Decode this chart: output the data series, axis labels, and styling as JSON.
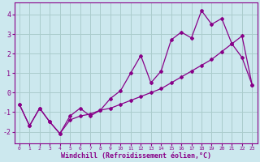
{
  "xlabel": "Windchill (Refroidissement éolien,°C)",
  "background_color": "#cce8ee",
  "grid_color": "#aacccc",
  "line_color": "#880088",
  "xlim": [
    -0.5,
    23.5
  ],
  "ylim": [
    -2.6,
    4.6
  ],
  "yticks": [
    -2,
    -1,
    0,
    1,
    2,
    3,
    4
  ],
  "xticks": [
    0,
    1,
    2,
    3,
    4,
    5,
    6,
    7,
    8,
    9,
    10,
    11,
    12,
    13,
    14,
    15,
    16,
    17,
    18,
    19,
    20,
    21,
    22,
    23
  ],
  "series1_x": [
    0,
    1,
    2,
    3,
    4,
    5,
    6,
    7,
    8,
    9,
    10,
    11,
    12,
    13,
    14,
    15,
    16,
    17,
    18,
    19,
    20,
    21,
    22,
    23
  ],
  "series1_y": [
    -0.6,
    -1.7,
    -0.8,
    -1.5,
    -2.1,
    -1.2,
    -0.8,
    -1.2,
    -0.9,
    -0.3,
    0.1,
    1.0,
    1.9,
    0.5,
    1.1,
    2.7,
    3.1,
    2.8,
    4.2,
    3.5,
    3.8,
    2.5,
    1.8,
    0.4
  ],
  "series2_x": [
    0,
    1,
    2,
    3,
    4,
    5,
    6,
    7,
    8,
    9,
    10,
    11,
    12,
    13,
    14,
    15,
    16,
    17,
    18,
    19,
    20,
    21,
    22,
    23
  ],
  "series2_y": [
    -0.6,
    -1.7,
    -0.8,
    -1.5,
    -2.1,
    -1.4,
    -1.2,
    -1.1,
    -0.9,
    -0.8,
    -0.6,
    -0.4,
    -0.2,
    0.0,
    0.2,
    0.5,
    0.8,
    1.1,
    1.4,
    1.7,
    2.1,
    2.5,
    2.9,
    0.4
  ]
}
